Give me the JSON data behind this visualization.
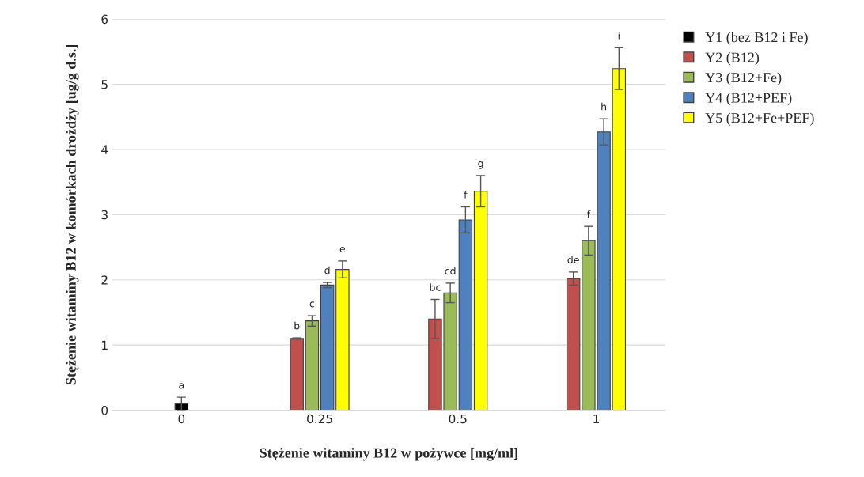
{
  "chart_data": {
    "type": "bar",
    "xlabel": "Stężenie witaminy B12 w pożywce [mg/ml]",
    "ylabel": "Stężenie witaminy B12 w komórkach drożdży [ug/g d.s.]",
    "categories": [
      "0",
      "0.25",
      "0.5",
      "1"
    ],
    "ylim": [
      0,
      6
    ],
    "yticks": [
      0,
      1,
      2,
      3,
      4,
      5,
      6
    ],
    "grid": "y",
    "legend": "right",
    "series": [
      {
        "name": "Y1 (bez B12 i Fe)",
        "color": "#000000",
        "values": [
          0.1,
          null,
          null,
          null
        ],
        "errors": [
          0.1,
          null,
          null,
          null
        ],
        "value_labels": [
          "a",
          null,
          null,
          null
        ]
      },
      {
        "name": "Y2 (B12)",
        "color": "#c0504d",
        "values": [
          null,
          1.1,
          1.4,
          2.02
        ],
        "errors": [
          null,
          0.01,
          0.3,
          0.1
        ],
        "value_labels": [
          null,
          "b",
          "bc",
          "de"
        ]
      },
      {
        "name": "Y3 (B12+Fe)",
        "color": "#9bbb59",
        "values": [
          null,
          1.37,
          1.8,
          2.6
        ],
        "errors": [
          null,
          0.08,
          0.15,
          0.22
        ],
        "value_labels": [
          null,
          "c",
          "cd",
          "f"
        ]
      },
      {
        "name": "Y4 (B12+PEF)",
        "color": "#4f81bd",
        "values": [
          null,
          1.92,
          2.92,
          4.27
        ],
        "errors": [
          null,
          0.04,
          0.2,
          0.2
        ],
        "value_labels": [
          null,
          "d",
          "f",
          "h"
        ]
      },
      {
        "name": "Y5 (B12+Fe+PEF)",
        "color": "#ffff00",
        "values": [
          null,
          2.16,
          3.36,
          5.24
        ],
        "errors": [
          null,
          0.13,
          0.24,
          0.32
        ],
        "value_labels": [
          null,
          "e",
          "g",
          "i"
        ]
      }
    ]
  }
}
